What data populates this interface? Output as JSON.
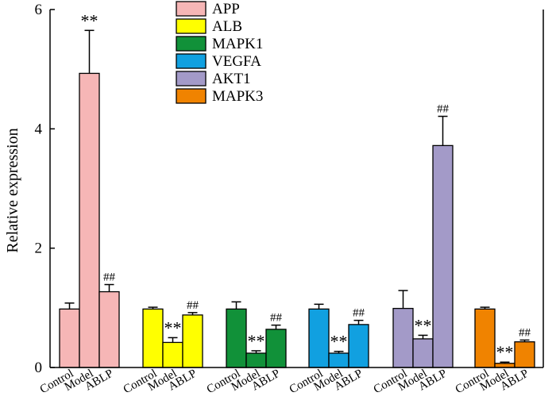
{
  "chart_data": {
    "type": "bar",
    "ylabel": "Relative expression",
    "xlabel": "",
    "ylim": [
      0,
      6
    ],
    "yticks": [
      0,
      2,
      4,
      6
    ],
    "groups": [
      "Control",
      "Model",
      "ABLP"
    ],
    "series": [
      {
        "name": "APP",
        "color": "#f6b6b6",
        "values": [
          0.98,
          4.93,
          1.27
        ],
        "errors": [
          0.1,
          0.72,
          0.12
        ],
        "annotations": [
          "",
          "**",
          "##"
        ]
      },
      {
        "name": "ALB",
        "color": "#ffff00",
        "values": [
          0.98,
          0.42,
          0.88
        ],
        "errors": [
          0.03,
          0.08,
          0.04
        ],
        "annotations": [
          "",
          "**",
          "##"
        ]
      },
      {
        "name": "MAPK1",
        "color": "#119139",
        "values": [
          0.98,
          0.24,
          0.64
        ],
        "errors": [
          0.12,
          0.04,
          0.07
        ],
        "annotations": [
          "",
          "**",
          "##"
        ]
      },
      {
        "name": "VEGFA",
        "color": "#11a0e0",
        "values": [
          0.98,
          0.24,
          0.72
        ],
        "errors": [
          0.08,
          0.03,
          0.07
        ],
        "annotations": [
          "",
          "**",
          "##"
        ]
      },
      {
        "name": "AKT1",
        "color": "#a39ac8",
        "values": [
          0.99,
          0.48,
          3.72
        ],
        "errors": [
          0.3,
          0.06,
          0.49
        ],
        "annotations": [
          "",
          "**",
          "##"
        ]
      },
      {
        "name": "MAPK3",
        "color": "#f08300",
        "values": [
          0.98,
          0.07,
          0.43
        ],
        "errors": [
          0.03,
          0.02,
          0.03
        ],
        "annotations": [
          "",
          "**",
          "##"
        ]
      }
    ],
    "legend_position": "top-center",
    "grid": false
  }
}
